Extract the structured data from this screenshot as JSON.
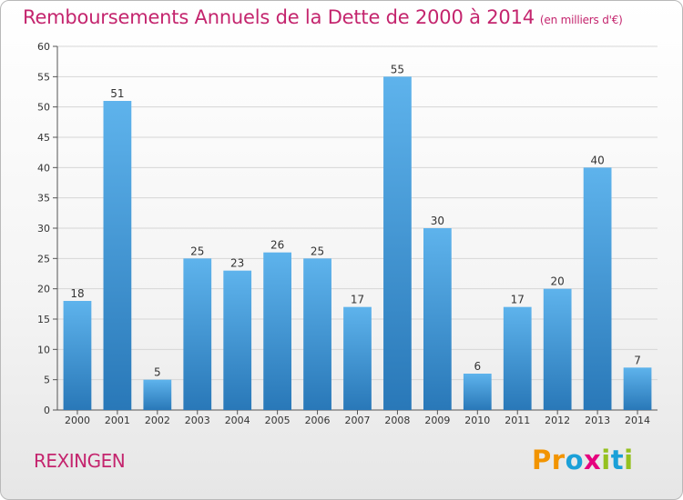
{
  "header": {
    "title": "Remboursements Annuels de la Dette de 2000 à 2014",
    "subtitle": "(en milliers d'€)"
  },
  "footer": {
    "commune": "REXINGEN",
    "logo_text": "Proxiti",
    "logo_letters": [
      {
        "ch": "P",
        "color": "#f29400"
      },
      {
        "ch": "r",
        "color": "#f29400"
      },
      {
        "ch": "o",
        "color": "#1ba0d8"
      },
      {
        "ch": "x",
        "color": "#e6007e"
      },
      {
        "ch": "i",
        "color": "#95c11f"
      },
      {
        "ch": "t",
        "color": "#1ba0d8"
      },
      {
        "ch": "i",
        "color": "#95c11f"
      }
    ]
  },
  "colors": {
    "title": "#c4256e",
    "bar_top": "#5eb3ec",
    "bar_bottom": "#2978b8",
    "grid": "#d6d6d6"
  },
  "chart_data": {
    "type": "bar",
    "title": "Remboursements Annuels de la Dette de 2000 à 2014",
    "xlabel": "",
    "ylabel": "",
    "categories": [
      "2000",
      "2001",
      "2002",
      "2003",
      "2004",
      "2005",
      "2006",
      "2007",
      "2008",
      "2009",
      "2010",
      "2011",
      "2012",
      "2013",
      "2014"
    ],
    "values": [
      18,
      51,
      5,
      25,
      23,
      26,
      25,
      17,
      55,
      30,
      6,
      17,
      20,
      40,
      7
    ],
    "ylim": [
      0,
      60
    ],
    "yticks": [
      0,
      5,
      10,
      15,
      20,
      25,
      30,
      35,
      40,
      45,
      50,
      55,
      60
    ],
    "grid": true,
    "legend": "none"
  }
}
